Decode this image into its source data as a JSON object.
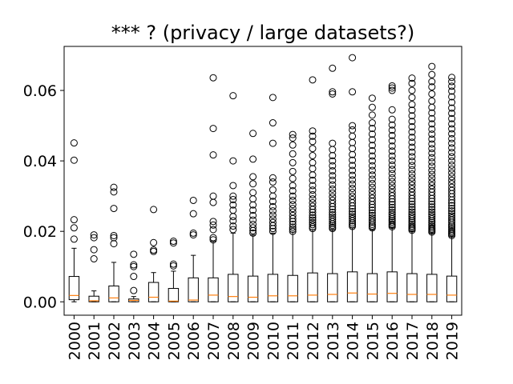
{
  "chart_data": {
    "type": "box",
    "title": "*** ? (privacy / large datasets?)",
    "xlabel": "",
    "ylabel": "",
    "ylim": [
      -0.0038,
      0.0725
    ],
    "y_ticks": [
      0.0,
      0.02,
      0.04,
      0.06
    ],
    "y_tick_labels": [
      "0.00",
      "0.02",
      "0.04",
      "0.06"
    ],
    "grid": false,
    "legend": "none",
    "colors": {
      "box": "#000000",
      "median": "#ff7f0e",
      "outlier": "#000000"
    },
    "categories": [
      "2000",
      "2001",
      "2002",
      "2003",
      "2004",
      "2005",
      "2006",
      "2007",
      "2008",
      "2009",
      "2010",
      "2011",
      "2012",
      "2013",
      "2014",
      "2015",
      "2016",
      "2017",
      "2018",
      "2019"
    ],
    "boxes": [
      {
        "whisker_low": 0.0,
        "q1": 0.0006,
        "median": 0.0018,
        "q3": 0.0072,
        "whisker_high": 0.0152,
        "outliers": [
          0.0178,
          0.021,
          0.0233,
          0.0402,
          0.0451
        ]
      },
      {
        "whisker_low": 0.0,
        "q1": 0.0,
        "median": 0.0003,
        "q3": 0.0016,
        "whisker_high": 0.0031,
        "outliers": [
          0.0122,
          0.0148,
          0.0182,
          0.019
        ]
      },
      {
        "whisker_low": 0.0,
        "q1": 0.0,
        "median": 0.0011,
        "q3": 0.0045,
        "whisker_high": 0.0112,
        "outliers": [
          0.0165,
          0.0182,
          0.0188,
          0.0265,
          0.0312,
          0.0325
        ]
      },
      {
        "whisker_low": 0.0,
        "q1": 0.0,
        "median": 0.0004,
        "q3": 0.0008,
        "whisker_high": 0.0015,
        "outliers": [
          0.0032,
          0.0072,
          0.01,
          0.0105,
          0.0135
        ]
      },
      {
        "whisker_low": 0.0,
        "q1": 0.0,
        "median": 0.0013,
        "q3": 0.0055,
        "whisker_high": 0.0083,
        "outliers": [
          0.0143,
          0.0147,
          0.0168,
          0.0262
        ]
      },
      {
        "whisker_low": 0.0,
        "q1": 0.0,
        "median": 0.0002,
        "q3": 0.0038,
        "whisker_high": 0.0087,
        "outliers": [
          0.0102,
          0.0107,
          0.0167,
          0.0172
        ]
      },
      {
        "whisker_low": 0.0,
        "q1": 0.0,
        "median": 0.0005,
        "q3": 0.0068,
        "whisker_high": 0.0132,
        "outliers": [
          0.019,
          0.0195,
          0.025,
          0.0288
        ]
      },
      {
        "whisker_low": 0.0,
        "q1": 0.0,
        "median": 0.0019,
        "q3": 0.0068,
        "whisker_high": 0.0172,
        "outliers": [
          0.0176,
          0.0182,
          0.0205,
          0.0218,
          0.0228,
          0.0282,
          0.03,
          0.0417,
          0.0492,
          0.0636
        ]
      },
      {
        "whisker_low": 0.0,
        "q1": 0.0,
        "median": 0.0015,
        "q3": 0.0078,
        "whisker_high": 0.0195,
        "outliers": [
          0.0205,
          0.0215,
          0.023,
          0.0242,
          0.026,
          0.0275,
          0.029,
          0.03,
          0.033,
          0.04,
          0.0585
        ]
      },
      {
        "whisker_low": 0.0,
        "q1": 0.0,
        "median": 0.0013,
        "q3": 0.0073,
        "whisker_high": 0.019,
        "outliers": [
          0.0195,
          0.0202,
          0.021,
          0.022,
          0.0232,
          0.0245,
          0.026,
          0.0275,
          0.0292,
          0.031,
          0.0335,
          0.0355,
          0.0405,
          0.0478
        ]
      },
      {
        "whisker_low": 0.0,
        "q1": 0.0,
        "median": 0.0017,
        "q3": 0.0078,
        "whisker_high": 0.0195,
        "outliers": [
          0.02,
          0.0208,
          0.0216,
          0.0225,
          0.0235,
          0.0246,
          0.0258,
          0.027,
          0.0285,
          0.03,
          0.0318,
          0.034,
          0.0352,
          0.045,
          0.0508,
          0.058
        ]
      },
      {
        "whisker_low": 0.0,
        "q1": 0.0,
        "median": 0.0017,
        "q3": 0.0075,
        "whisker_high": 0.0198,
        "outliers": [
          0.02,
          0.0206,
          0.0212,
          0.022,
          0.0228,
          0.0236,
          0.0245,
          0.0255,
          0.0265,
          0.0276,
          0.0288,
          0.03,
          0.0315,
          0.033,
          0.035,
          0.037,
          0.0395,
          0.042,
          0.0445,
          0.0465,
          0.0475
        ]
      },
      {
        "whisker_low": 0.0,
        "q1": 0.0,
        "median": 0.0019,
        "q3": 0.0082,
        "whisker_high": 0.0205,
        "outliers": [
          0.0208,
          0.0213,
          0.0219,
          0.0225,
          0.0232,
          0.0239,
          0.0246,
          0.0254,
          0.0262,
          0.0271,
          0.0281,
          0.0292,
          0.0304,
          0.0317,
          0.033,
          0.0345,
          0.036,
          0.0378,
          0.0395,
          0.0415,
          0.0435,
          0.0455,
          0.047,
          0.0485,
          0.063
        ]
      },
      {
        "whisker_low": 0.0,
        "q1": 0.0,
        "median": 0.0021,
        "q3": 0.008,
        "whisker_high": 0.0205,
        "outliers": [
          0.0208,
          0.0212,
          0.0217,
          0.0222,
          0.0228,
          0.0234,
          0.024,
          0.0247,
          0.0254,
          0.0262,
          0.027,
          0.0279,
          0.0288,
          0.0298,
          0.0309,
          0.032,
          0.0332,
          0.0345,
          0.0358,
          0.0372,
          0.0386,
          0.04,
          0.0415,
          0.0432,
          0.045,
          0.059,
          0.0596,
          0.0663
        ]
      },
      {
        "whisker_low": 0.0,
        "q1": 0.0,
        "median": 0.0025,
        "q3": 0.0085,
        "whisker_high": 0.021,
        "outliers": [
          0.0214,
          0.0219,
          0.0224,
          0.023,
          0.0236,
          0.0242,
          0.0249,
          0.0256,
          0.0264,
          0.0272,
          0.0281,
          0.029,
          0.03,
          0.0311,
          0.0322,
          0.0334,
          0.0346,
          0.0359,
          0.0373,
          0.0387,
          0.0402,
          0.0418,
          0.0435,
          0.0452,
          0.047,
          0.0488,
          0.05,
          0.0596,
          0.0693
        ]
      },
      {
        "whisker_low": 0.0,
        "q1": 0.0,
        "median": 0.0022,
        "q3": 0.008,
        "whisker_high": 0.0205,
        "outliers": [
          0.021,
          0.0215,
          0.022,
          0.0226,
          0.0232,
          0.0238,
          0.0245,
          0.0252,
          0.026,
          0.0268,
          0.0276,
          0.0285,
          0.0294,
          0.0304,
          0.0314,
          0.0325,
          0.0336,
          0.0348,
          0.036,
          0.0373,
          0.0386,
          0.04,
          0.0414,
          0.0429,
          0.0444,
          0.046,
          0.0476,
          0.0492,
          0.0508,
          0.053,
          0.0552,
          0.0578
        ]
      },
      {
        "whisker_low": 0.0,
        "q1": 0.0,
        "median": 0.0024,
        "q3": 0.0085,
        "whisker_high": 0.021,
        "outliers": [
          0.0213,
          0.0217,
          0.0221,
          0.0226,
          0.0231,
          0.0236,
          0.0242,
          0.0248,
          0.0254,
          0.0261,
          0.0268,
          0.0276,
          0.0284,
          0.0292,
          0.0301,
          0.031,
          0.032,
          0.033,
          0.0341,
          0.0352,
          0.0364,
          0.0376,
          0.0388,
          0.0401,
          0.0414,
          0.0428,
          0.0442,
          0.0457,
          0.0472,
          0.0487,
          0.0502,
          0.0518,
          0.0545,
          0.06,
          0.0607,
          0.0613
        ]
      },
      {
        "whisker_low": 0.0,
        "q1": 0.0,
        "median": 0.0021,
        "q3": 0.008,
        "whisker_high": 0.02,
        "outliers": [
          0.0203,
          0.0207,
          0.0211,
          0.0215,
          0.022,
          0.0225,
          0.023,
          0.0236,
          0.0242,
          0.0248,
          0.0255,
          0.0262,
          0.0269,
          0.0277,
          0.0285,
          0.0293,
          0.0302,
          0.0311,
          0.0321,
          0.0331,
          0.0341,
          0.0352,
          0.0363,
          0.0375,
          0.0387,
          0.0399,
          0.0412,
          0.0425,
          0.0439,
          0.0453,
          0.0467,
          0.0482,
          0.0497,
          0.0512,
          0.0528,
          0.0544,
          0.056,
          0.058,
          0.06,
          0.062,
          0.0635
        ]
      },
      {
        "whisker_low": 0.0,
        "q1": 0.0,
        "median": 0.0021,
        "q3": 0.0078,
        "whisker_high": 0.0195,
        "outliers": [
          0.0198,
          0.0202,
          0.0206,
          0.021,
          0.0215,
          0.022,
          0.0225,
          0.023,
          0.0236,
          0.0242,
          0.0248,
          0.0255,
          0.0262,
          0.0269,
          0.0277,
          0.0285,
          0.0293,
          0.0302,
          0.0311,
          0.032,
          0.033,
          0.034,
          0.0351,
          0.0362,
          0.0373,
          0.0385,
          0.0397,
          0.0409,
          0.0422,
          0.0435,
          0.0448,
          0.0462,
          0.0476,
          0.049,
          0.0505,
          0.052,
          0.0536,
          0.0552,
          0.057,
          0.059,
          0.061,
          0.0625,
          0.0645,
          0.0668
        ]
      },
      {
        "whisker_low": 0.0,
        "q1": 0.0,
        "median": 0.0019,
        "q3": 0.0073,
        "whisker_high": 0.0185,
        "outliers": [
          0.0188,
          0.0192,
          0.0196,
          0.02,
          0.0205,
          0.021,
          0.0215,
          0.022,
          0.0226,
          0.0232,
          0.0238,
          0.0244,
          0.0251,
          0.0258,
          0.0265,
          0.0273,
          0.0281,
          0.0289,
          0.0298,
          0.0307,
          0.0316,
          0.0325,
          0.0335,
          0.0345,
          0.0355,
          0.0366,
          0.0377,
          0.0388,
          0.04,
          0.0412,
          0.0424,
          0.0437,
          0.045,
          0.0463,
          0.0477,
          0.0491,
          0.0505,
          0.052,
          0.0535,
          0.055,
          0.0566,
          0.0582,
          0.0598,
          0.0612,
          0.0625,
          0.0637
        ]
      }
    ]
  }
}
